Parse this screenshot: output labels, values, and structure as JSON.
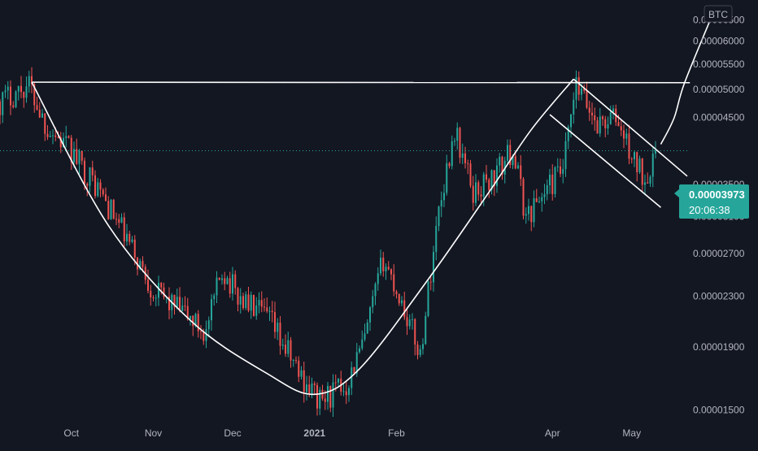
{
  "currency_badge": "BTC",
  "last_price": "0.00003973",
  "countdown": "20:06:38",
  "colors": {
    "background": "#131722",
    "up": "#26a69a",
    "down": "#ef5350",
    "drawing": "#ffffff",
    "axis_text": "#b2b5be",
    "price_tag": "#26a69a"
  },
  "chart_data": {
    "type": "candlestick",
    "y_scale": "log",
    "ylim": [
      1.43e-05,
      7e-05
    ],
    "grid": false,
    "y_ticks": [
      {
        "value": 6.5e-05,
        "label": "0.00006500"
      },
      {
        "value": 6e-05,
        "label": "0.00006000"
      },
      {
        "value": 5.5e-05,
        "label": "0.00005500"
      },
      {
        "value": 5e-05,
        "label": "0.00005000"
      },
      {
        "value": 4.5e-05,
        "label": "0.00004500"
      },
      {
        "value": 3.5e-05,
        "label": "0.00003500"
      },
      {
        "value": 3.1e-05,
        "label": "0.00003100"
      },
      {
        "value": 2.7e-05,
        "label": "0.00002700"
      },
      {
        "value": 2.3e-05,
        "label": "0.00002300"
      },
      {
        "value": 1.9e-05,
        "label": "0.00001900"
      },
      {
        "value": 1.5e-05,
        "label": "0.00001500"
      }
    ],
    "x_ticks": [
      {
        "date": "2020-10-01",
        "label": "Oct",
        "bold": false
      },
      {
        "date": "2020-11-01",
        "label": "Nov",
        "bold": false
      },
      {
        "date": "2020-12-01",
        "label": "Dec",
        "bold": false
      },
      {
        "date": "2021-01-01",
        "label": "2021",
        "bold": true
      },
      {
        "date": "2021-02-01",
        "label": "Feb",
        "bold": false
      },
      {
        "date": "2021-04-01",
        "label": "Apr",
        "bold": false
      },
      {
        "date": "2021-05-01",
        "label": "May",
        "bold": false
      }
    ],
    "xlim": [
      "2020-09-04",
      "2021-05-22"
    ],
    "last_price": 3.973e-05,
    "anchors": [
      {
        "date": "2020-09-04",
        "value": 4.78e-05
      },
      {
        "date": "2020-09-15",
        "value": 5.1e-05
      },
      {
        "date": "2020-09-21",
        "value": 4.4e-05
      },
      {
        "date": "2020-10-01",
        "value": 3.95e-05
      },
      {
        "date": "2020-10-11",
        "value": 3.45e-05
      },
      {
        "date": "2020-10-21",
        "value": 2.9e-05
      },
      {
        "date": "2020-11-01",
        "value": 2.35e-05
      },
      {
        "date": "2020-11-13",
        "value": 2.15e-05
      },
      {
        "date": "2020-11-21",
        "value": 2e-05
      },
      {
        "date": "2020-11-27",
        "value": 2.55e-05
      },
      {
        "date": "2020-12-03",
        "value": 2.3e-05
      },
      {
        "date": "2020-12-15",
        "value": 2.1e-05
      },
      {
        "date": "2020-12-27",
        "value": 1.7e-05
      },
      {
        "date": "2021-01-03",
        "value": 1.55e-05
      },
      {
        "date": "2021-01-13",
        "value": 1.65e-05
      },
      {
        "date": "2021-01-20",
        "value": 1.95e-05
      },
      {
        "date": "2021-01-27",
        "value": 2.65e-05
      },
      {
        "date": "2021-02-03",
        "value": 2.25e-05
      },
      {
        "date": "2021-02-10",
        "value": 1.85e-05
      },
      {
        "date": "2021-02-17",
        "value": 3.2e-05
      },
      {
        "date": "2021-02-23",
        "value": 4.3e-05
      },
      {
        "date": "2021-03-02",
        "value": 3.4e-05
      },
      {
        "date": "2021-03-10",
        "value": 3.6e-05
      },
      {
        "date": "2021-03-17",
        "value": 4e-05
      },
      {
        "date": "2021-03-22",
        "value": 3.1e-05
      },
      {
        "date": "2021-03-30",
        "value": 3.45e-05
      },
      {
        "date": "2021-04-05",
        "value": 3.7e-05
      },
      {
        "date": "2021-04-10",
        "value": 5.05e-05
      },
      {
        "date": "2021-04-18",
        "value": 4.4e-05
      },
      {
        "date": "2021-04-25",
        "value": 4.5e-05
      },
      {
        "date": "2021-05-02",
        "value": 3.8e-05
      },
      {
        "date": "2021-05-06",
        "value": 3.6e-05
      },
      {
        "date": "2021-05-10",
        "value": 3.97e-05
      }
    ],
    "drawings": {
      "resistance_line": [
        {
          "date": "2020-09-16",
          "value": 5.14e-05
        },
        {
          "date": "2021-05-23",
          "value": 5.13e-05
        }
      ],
      "cup_curve": [
        {
          "date": "2020-09-16",
          "value": 5.14e-05
        },
        {
          "date": "2020-10-15",
          "value": 3e-05
        },
        {
          "date": "2020-11-15",
          "value": 2.1e-05
        },
        {
          "date": "2020-12-14",
          "value": 1.72e-05
        },
        {
          "date": "2021-01-01",
          "value": 1.59e-05
        },
        {
          "date": "2021-01-18",
          "value": 1.75e-05
        },
        {
          "date": "2021-02-13",
          "value": 2.45e-05
        },
        {
          "date": "2021-03-08",
          "value": 3.4e-05
        },
        {
          "date": "2021-03-24",
          "value": 4.3e-05
        },
        {
          "date": "2021-04-09",
          "value": 5.2e-05
        }
      ],
      "channel_upper": [
        {
          "date": "2021-04-09",
          "value": 5.2e-05
        },
        {
          "date": "2021-05-22",
          "value": 3.61e-05
        }
      ],
      "channel_lower": [
        {
          "date": "2021-03-31",
          "value": 4.55e-05
        },
        {
          "date": "2021-05-12",
          "value": 3.21e-05
        }
      ],
      "breakout_path": [
        {
          "date": "2021-05-12",
          "value": 4.07e-05
        },
        {
          "date": "2021-05-17",
          "value": 4.49e-05
        },
        {
          "date": "2021-05-21",
          "value": 5.13e-05
        },
        {
          "date": "2021-06-01",
          "value": 6.7e-05
        }
      ]
    }
  }
}
